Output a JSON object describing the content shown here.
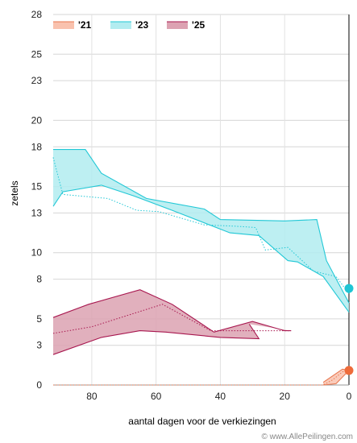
{
  "chart_data": {
    "type": "area",
    "xlabel": "aantal dagen voor de verkiezingen",
    "ylabel": "zetels",
    "xlim": [
      92,
      0
    ],
    "ylim": [
      0,
      28
    ],
    "x_ticks": [
      80,
      60,
      40,
      20,
      0
    ],
    "y_ticks": [
      {
        "value": 0,
        "label": "0"
      },
      {
        "value": 3,
        "label": "3"
      },
      {
        "value": 5,
        "label": "5"
      },
      {
        "value": 8,
        "label": "8"
      },
      {
        "value": 10,
        "label": "10"
      },
      {
        "value": 13,
        "label": "13"
      },
      {
        "value": 15,
        "label": "15"
      },
      {
        "value": 18,
        "label": "18"
      },
      {
        "value": 20,
        "label": "20"
      },
      {
        "value": 23,
        "label": "23"
      },
      {
        "value": 25,
        "label": "25"
      },
      {
        "value": 28,
        "label": "28"
      }
    ],
    "grid": true,
    "legend_position": "top-left",
    "credit": "© www.AllePeilingen.com",
    "series": [
      {
        "name": "'21",
        "stroke": "#e8774f",
        "fill": "#f9c2ae",
        "upper": [
          [
            8,
            0.2
          ],
          [
            2,
            1.2
          ],
          [
            0,
            1.1
          ]
        ],
        "lower": [
          [
            8,
            0
          ],
          [
            4,
            0.1
          ],
          [
            0,
            1.1
          ]
        ],
        "mid": [
          [
            92,
            0
          ],
          [
            8,
            0
          ],
          [
            5,
            0.4
          ],
          [
            2,
            1
          ],
          [
            0,
            1.1
          ]
        ],
        "marker": [
          0,
          1.1
        ],
        "marker_color": "#ee6b3a"
      },
      {
        "name": "'23",
        "stroke": "#22c8d6",
        "fill": "#b2ecf0",
        "upper": [
          [
            92,
            17.8
          ],
          [
            82,
            17.8
          ],
          [
            77,
            16
          ],
          [
            63,
            14.1
          ],
          [
            45,
            13.3
          ],
          [
            40,
            12.5
          ],
          [
            20,
            12.4
          ],
          [
            10,
            12.5
          ],
          [
            7,
            9.4
          ],
          [
            0,
            6.2
          ]
        ],
        "lower": [
          [
            92,
            13.5
          ],
          [
            89,
            14.6
          ],
          [
            77,
            15.1
          ],
          [
            67,
            14.3
          ],
          [
            55,
            13.2
          ],
          [
            37,
            11.5
          ],
          [
            28,
            11.3
          ],
          [
            19,
            9.4
          ],
          [
            16,
            9.3
          ],
          [
            8,
            8.2
          ],
          [
            0,
            5.5
          ]
        ],
        "mid": [
          [
            92,
            17.2
          ],
          [
            89,
            14.4
          ],
          [
            75,
            14.1
          ],
          [
            66,
            13.2
          ],
          [
            59,
            13.1
          ],
          [
            45,
            12.1
          ],
          [
            35,
            12
          ],
          [
            29,
            11.9
          ],
          [
            26,
            10.2
          ],
          [
            19,
            10.4
          ],
          [
            11,
            8.6
          ],
          [
            4,
            8.2
          ],
          [
            0,
            6.9
          ]
        ],
        "marker": [
          0,
          7.3
        ],
        "marker_color": "#1fc5d4"
      },
      {
        "name": "'25",
        "stroke": "#a8174f",
        "fill": "#dca2b2",
        "upper": [
          [
            92,
            5.1
          ],
          [
            81,
            6.1
          ],
          [
            65,
            7.2
          ],
          [
            55,
            6.1
          ],
          [
            42,
            4
          ],
          [
            30,
            4.8
          ],
          [
            20,
            4.1
          ],
          [
            18,
            4.1
          ]
        ],
        "lower": [
          [
            92,
            2.3
          ],
          [
            77,
            3.6
          ],
          [
            65,
            4.1
          ],
          [
            57,
            4
          ],
          [
            40,
            3.6
          ],
          [
            28,
            3.5
          ],
          [
            31,
            4.6
          ]
        ],
        "mid": [
          [
            92,
            3.9
          ],
          [
            80,
            4.4
          ],
          [
            58,
            6.1
          ],
          [
            43,
            4.1
          ],
          [
            20,
            4.1
          ],
          [
            18,
            4.1
          ]
        ],
        "marker": null,
        "marker_color": "#a8174f"
      }
    ]
  }
}
